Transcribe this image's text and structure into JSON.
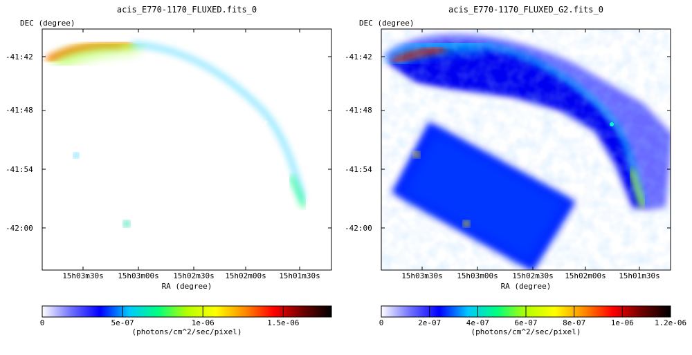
{
  "chart_data": [
    {
      "type": "heatmap",
      "title": "acis_E770-1170_FLUXED.fits_0",
      "xlabel": "RA (degree)",
      "ylabel": "DEC (degree)",
      "x_ticks": [
        "15h03m30s",
        "15h03m00s",
        "15h02m30s",
        "15h02m00s",
        "15h01m30s"
      ],
      "y_ticks": [
        "-41:42",
        "-41:48",
        "-41:54",
        "-42:00"
      ],
      "colorbar": {
        "label": "(photons/cm^2/sec/pixel)",
        "min": 0,
        "max": 1.8e-06,
        "tick_values": [
          0,
          5e-07,
          1e-06,
          1.5e-06
        ],
        "tick_labels": [
          "0",
          "5e-07",
          "1e-06",
          "1.5e-06"
        ]
      },
      "image_style": "noisy"
    },
    {
      "type": "heatmap",
      "title": "acis_E770-1170_FLUXED_G2.fits_0",
      "xlabel": "RA (degree)",
      "ylabel": "DEC (degree)",
      "x_ticks": [
        "15h03m30s",
        "15h03m00s",
        "15h02m30s",
        "15h02m00s",
        "15h01m30s"
      ],
      "y_ticks": [
        "-41:42",
        "-41:48",
        "-41:54",
        "-42:00"
      ],
      "colorbar": {
        "label": "(photons/cm^2/sec/pixel)",
        "min": 0,
        "max": 1.2e-06,
        "tick_values": [
          0,
          2e-07,
          4e-07,
          6e-07,
          8e-07,
          1e-06,
          1.2e-06
        ],
        "tick_labels": [
          "0",
          "2e-07",
          "4e-07",
          "6e-07",
          "8e-07",
          "1e-06",
          "1.2e-06"
        ]
      },
      "image_style": "smoothed"
    }
  ],
  "colormap": [
    "#ffffff",
    "#7070ff",
    "#0000ff",
    "#00c8ff",
    "#00ff80",
    "#b4ff00",
    "#ffff00",
    "#ff8c00",
    "#ff0000",
    "#6e0000",
    "#000000"
  ]
}
